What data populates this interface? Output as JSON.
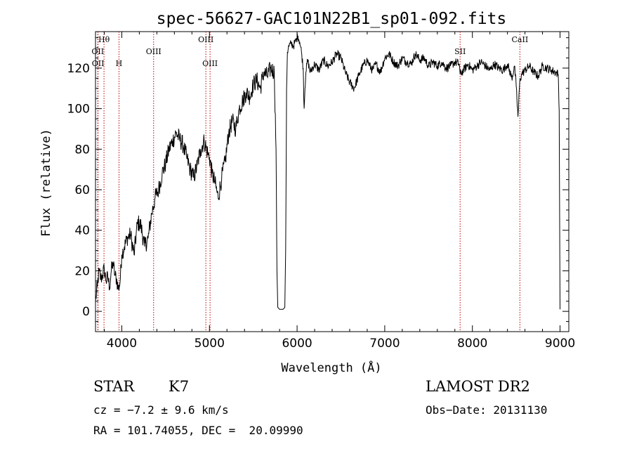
{
  "chart_data": {
    "type": "line",
    "title": "spec-56627-GAC101N22B1_sp01-092.fits",
    "xlabel": "Wavelength (Å)",
    "ylabel": "Flux (relative)",
    "xlim": [
      3700,
      9100
    ],
    "ylim": [
      -10,
      138
    ],
    "xticks": [
      4000,
      5000,
      6000,
      7000,
      8000,
      9000
    ],
    "yticks": [
      0,
      20,
      40,
      60,
      80,
      100,
      120
    ],
    "series": [
      {
        "x": [
          3700,
          3720,
          3740,
          3760,
          3780,
          3800,
          3820,
          3840,
          3860,
          3880,
          3900,
          3920,
          3940,
          3960,
          3980,
          4000,
          4030,
          4060,
          4100,
          4140,
          4180,
          4220,
          4260,
          4300,
          4340,
          4380,
          4420,
          4460,
          4500,
          4540,
          4580,
          4620,
          4660,
          4700,
          4740,
          4780,
          4820,
          4860,
          4900,
          4940,
          4980,
          5000,
          5030,
          5060,
          5100,
          5140,
          5180,
          5220,
          5260,
          5300,
          5340,
          5380,
          5420,
          5460,
          5500,
          5540,
          5580,
          5620,
          5660,
          5700,
          5740,
          5760,
          5770,
          5780,
          5800,
          5820,
          5840,
          5860,
          5870,
          5880,
          5890,
          5900,
          5910,
          5930,
          5960,
          5990,
          6010,
          6030,
          6050,
          6070,
          6080,
          6090,
          6100,
          6120,
          6150,
          6200,
          6250,
          6300,
          6350,
          6400,
          6450,
          6500,
          6550,
          6600,
          6650,
          6700,
          6750,
          6800,
          6830,
          6860,
          6900,
          6950,
          7000,
          7050,
          7100,
          7150,
          7200,
          7250,
          7300,
          7350,
          7400,
          7450,
          7500,
          7550,
          7600,
          7650,
          7700,
          7750,
          7800,
          7850,
          7860,
          7900,
          7950,
          8000,
          8050,
          8100,
          8150,
          8200,
          8250,
          8300,
          8350,
          8400,
          8450,
          8480,
          8500,
          8520,
          8540,
          8560,
          8600,
          8650,
          8700,
          8750,
          8800,
          8850,
          8900,
          8950,
          8980,
          8990,
          9000
        ],
        "y": [
          5,
          12,
          20,
          16,
          18,
          21,
          15,
          17,
          12,
          20,
          24,
          18,
          16,
          11,
          14,
          28,
          32,
          36,
          38,
          28,
          44,
          42,
          32,
          36,
          48,
          56,
          60,
          68,
          73,
          80,
          84,
          88,
          85,
          82,
          76,
          70,
          66,
          72,
          80,
          84,
          78,
          76,
          68,
          64,
          56,
          66,
          74,
          88,
          94,
          90,
          100,
          104,
          108,
          106,
          112,
          114,
          110,
          118,
          116,
          120,
          118,
          80,
          20,
          2,
          1,
          1,
          1,
          2,
          30,
          110,
          128,
          130,
          131,
          132,
          131,
          134,
          136,
          133,
          128,
          120,
          100,
          110,
          118,
          124,
          118,
          122,
          119,
          124,
          121,
          123,
          127,
          125,
          118,
          113,
          110,
          116,
          121,
          124,
          121,
          119,
          122,
          118,
          125,
          127,
          123,
          121,
          125,
          123,
          122,
          127,
          124,
          125,
          121,
          123,
          121,
          123,
          120,
          121,
          123,
          122,
          117,
          119,
          122,
          119,
          121,
          123,
          121,
          119,
          122,
          120,
          119,
          122,
          115,
          121,
          111,
          96,
          113,
          117,
          119,
          121,
          118,
          116,
          121,
          120,
          119,
          118,
          117,
          99,
          1
        ]
      }
    ],
    "line_markers": [
      {
        "label": "Hθ",
        "x": 3797,
        "row": 0
      },
      {
        "label": "OII",
        "x": 3726,
        "row": 1
      },
      {
        "label": "OII",
        "x": 3729,
        "row": 2
      },
      {
        "label": "H",
        "x": 3968,
        "row": 2
      },
      {
        "label": "OIII",
        "x": 4363,
        "row": 1
      },
      {
        "label": "OIII",
        "x": 4959,
        "row": 0
      },
      {
        "label": "OIII",
        "x": 5007,
        "row": 2
      },
      {
        "label": "SII",
        "x": 7860,
        "row": 1
      },
      {
        "label": "CaII",
        "x": 8542,
        "row": 0
      }
    ],
    "grid": false
  },
  "info": {
    "object_type": "STAR",
    "subclass": "K7",
    "survey": "LAMOST DR2",
    "cz": "cz = −7.2 ± 9.6 km/s",
    "obs_date": "Obs−Date: 20131130",
    "radec": "RA = 101.74055, DEC =  20.09990"
  },
  "colors": {
    "spectrum": "#000000",
    "marker_line": "#c00000",
    "background": "#ffffff"
  }
}
